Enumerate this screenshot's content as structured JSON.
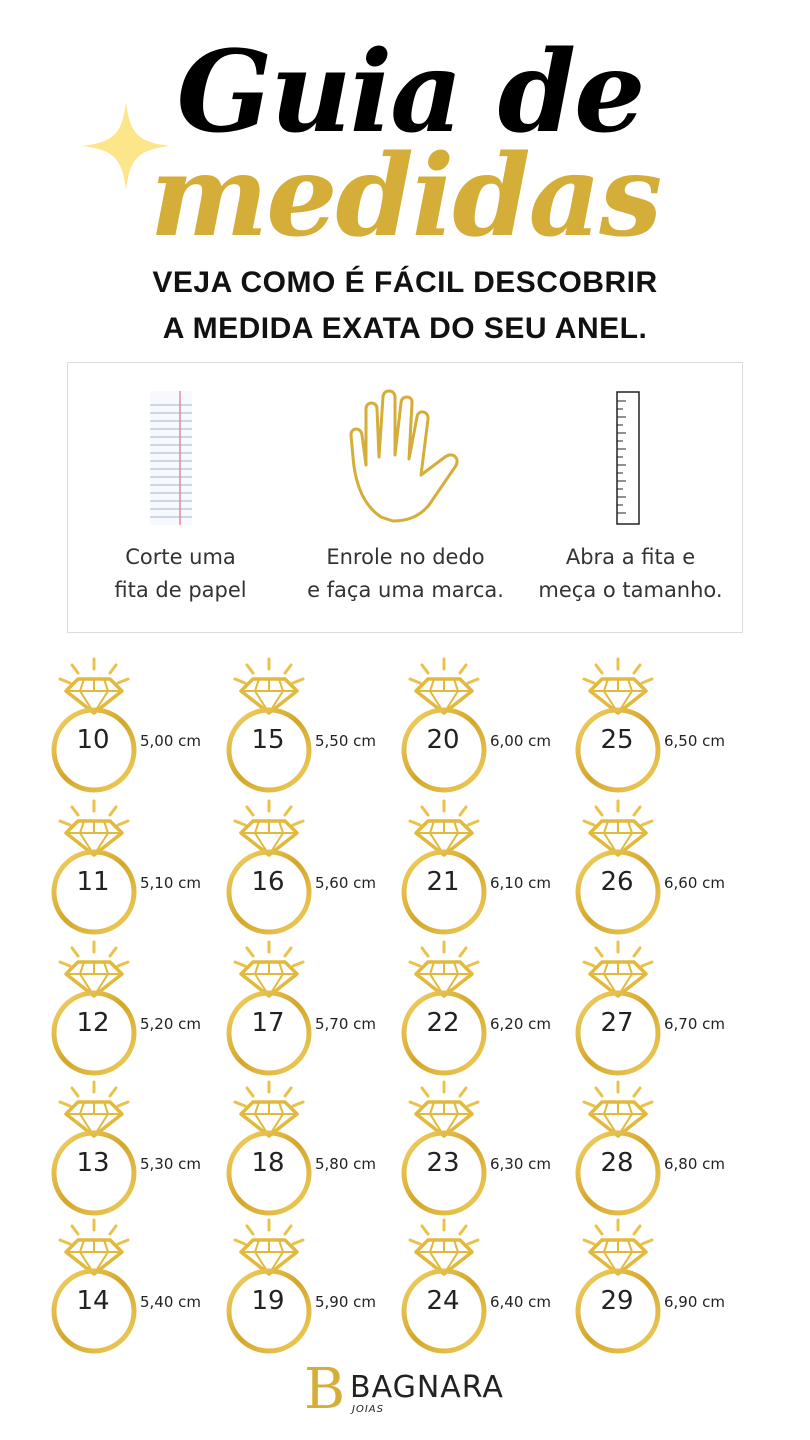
{
  "header": {
    "title_line1": "Guia de",
    "title_line2": "medidas",
    "subtitle_line1": "VEJA COMO É FÁCIL DESCOBRIR",
    "subtitle_line2": "A MEDIDA EXATA DO SEU ANEL."
  },
  "steps": [
    {
      "icon": "notebook-paper-icon",
      "line1": "Corte uma",
      "line2": "fita de papel"
    },
    {
      "icon": "hand-icon",
      "line1": "Enrole no dedo",
      "line2": "e faça uma marca."
    },
    {
      "icon": "ruler-icon",
      "line1": "Abra a fita e",
      "line2": "meça o tamanho."
    }
  ],
  "ring_sizes": [
    {
      "size": "10",
      "cm": "5,00 cm"
    },
    {
      "size": "15",
      "cm": "5,50 cm"
    },
    {
      "size": "20",
      "cm": "6,00 cm"
    },
    {
      "size": "25",
      "cm": "6,50 cm"
    },
    {
      "size": "11",
      "cm": "5,10 cm"
    },
    {
      "size": "16",
      "cm": "5,60 cm"
    },
    {
      "size": "21",
      "cm": "6,10 cm"
    },
    {
      "size": "26",
      "cm": "6,60 cm"
    },
    {
      "size": "12",
      "cm": "5,20 cm"
    },
    {
      "size": "17",
      "cm": "5,70 cm"
    },
    {
      "size": "22",
      "cm": "6,20 cm"
    },
    {
      "size": "27",
      "cm": "6,70 cm"
    },
    {
      "size": "13",
      "cm": "5,30 cm"
    },
    {
      "size": "18",
      "cm": "5,80 cm"
    },
    {
      "size": "23",
      "cm": "6,30 cm"
    },
    {
      "size": "28",
      "cm": "6,80 cm"
    },
    {
      "size": "14",
      "cm": "5,40 cm"
    },
    {
      "size": "19",
      "cm": "5,90 cm"
    },
    {
      "size": "24",
      "cm": "6,40 cm"
    },
    {
      "size": "29",
      "cm": "6,90 cm"
    }
  ],
  "brand": {
    "letter": "B",
    "name": "BAGNARA",
    "tagline": "JOIAS"
  },
  "colors": {
    "gold": "#d4ae38",
    "sparkle": "#fde58a",
    "text": "#111111"
  }
}
